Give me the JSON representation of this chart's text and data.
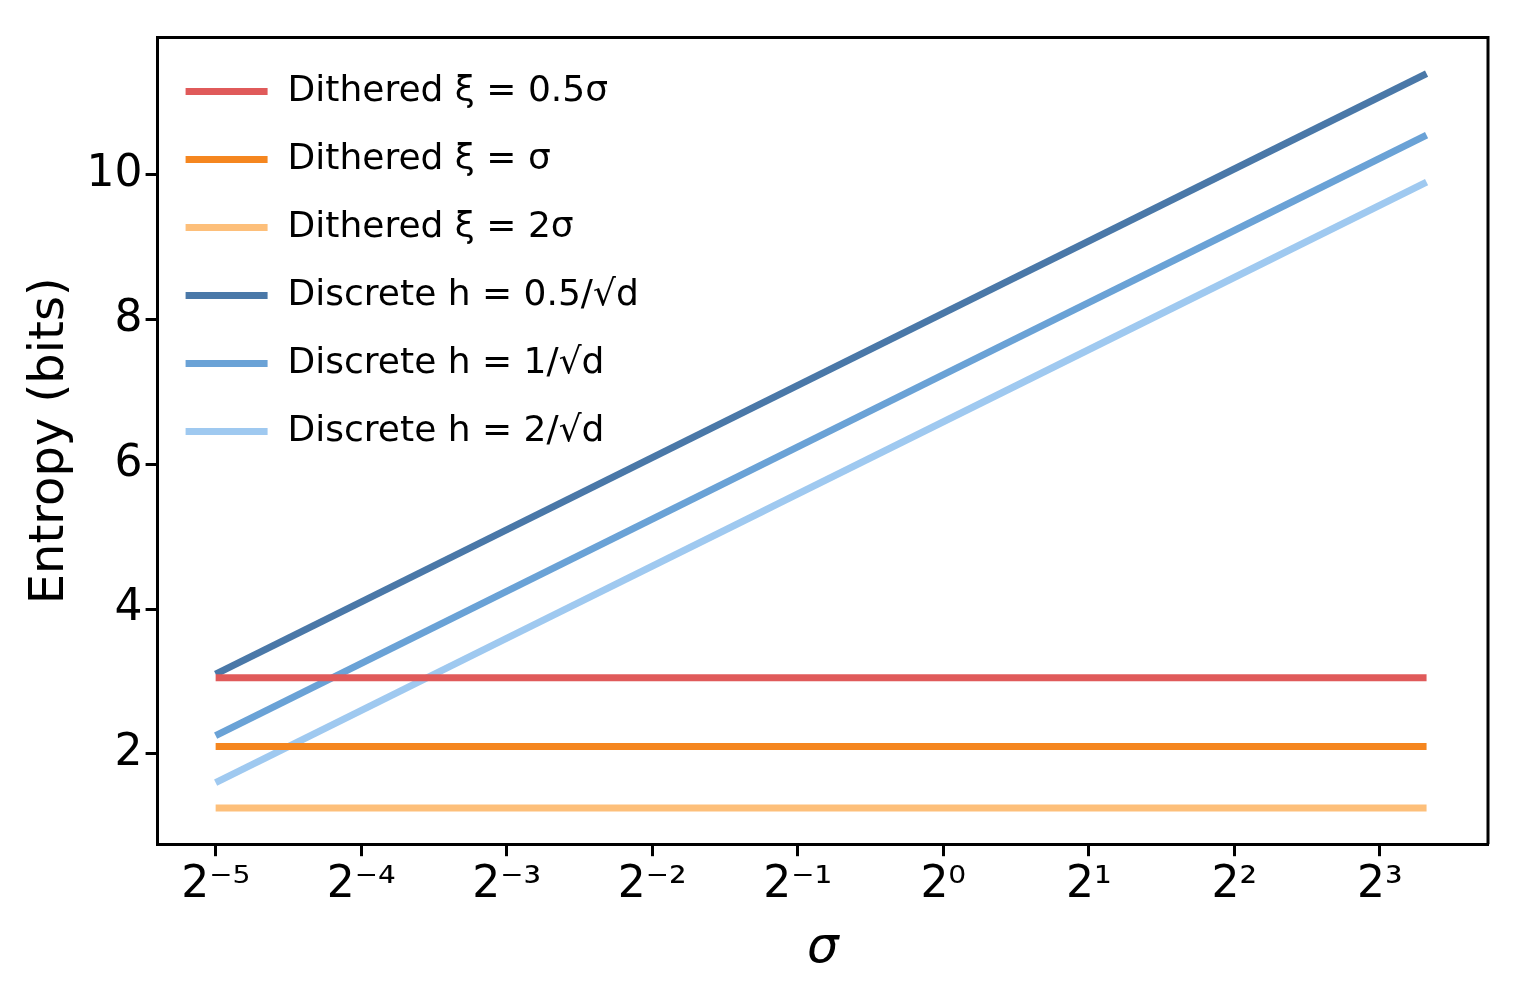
{
  "chart_data": {
    "type": "line",
    "xlabel": "σ",
    "ylabel": "Entropy (bits)",
    "x": [
      0.03125,
      10
    ],
    "series": [
      {
        "name": "Dithered ξ = 0.5σ",
        "color": "#e05a5a",
        "values": [
          3.05,
          3.05
        ]
      },
      {
        "name": "Dithered ξ = σ",
        "color": "#f5861f",
        "values": [
          2.1,
          2.1
        ]
      },
      {
        "name": "Dithered ξ = 2σ",
        "color": "#fdbf7a",
        "values": [
          1.25,
          1.25
        ]
      },
      {
        "name": "Discrete h = 0.5/√d",
        "color": "#4a78a8",
        "values": [
          3.1,
          11.4
        ]
      },
      {
        "name": "Discrete h = 1/√d",
        "color": "#6aa2d6",
        "values": [
          2.25,
          10.55
        ]
      },
      {
        "name": "Discrete h = 2/√d",
        "color": "#9fc9f0",
        "values": [
          1.6,
          9.9
        ]
      }
    ],
    "log": "x",
    "xlim": [
      0.0237,
      13.4
    ],
    "xticks": [
      {
        "value": 0.03125,
        "label": "2⁻⁵"
      },
      {
        "value": 0.0625,
        "label": "2⁻⁴"
      },
      {
        "value": 0.125,
        "label": "2⁻³"
      },
      {
        "value": 0.25,
        "label": "2⁻²"
      },
      {
        "value": 0.5,
        "label": "2⁻¹"
      },
      {
        "value": 1,
        "label": "2⁰"
      },
      {
        "value": 2,
        "label": "2¹"
      },
      {
        "value": 4,
        "label": "2²"
      },
      {
        "value": 8,
        "label": "2³"
      }
    ],
    "ylim": [
      0.75,
      11.9
    ],
    "yticks": [
      2,
      4,
      6,
      8,
      10
    ],
    "grid": false,
    "legend": "top left",
    "marker": "none",
    "line_style": "solid"
  }
}
